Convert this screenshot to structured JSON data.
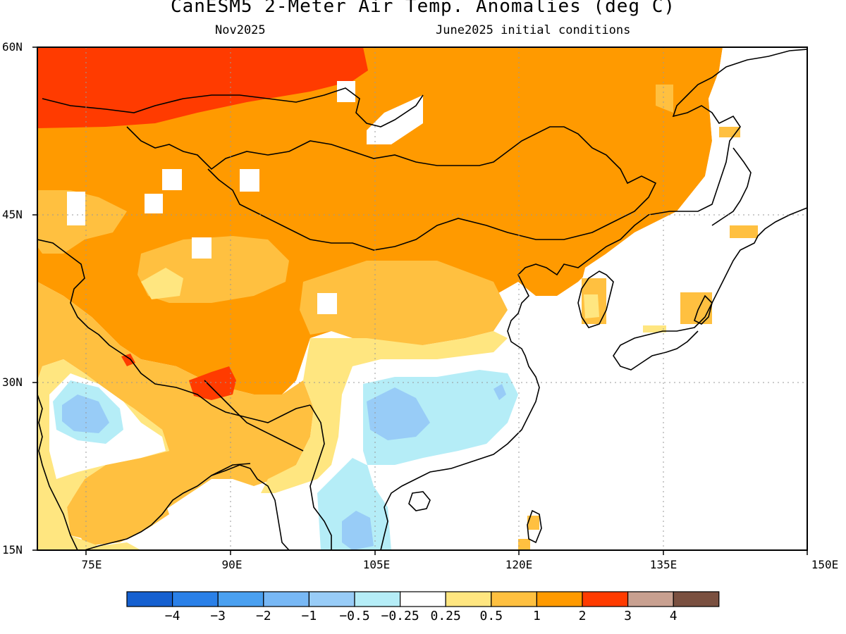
{
  "title": "CanESM5 2-Meter Air Temp. Anomalies (deg C)",
  "subtitle_left": "Nov2025",
  "subtitle_right": "June2025 initial conditions",
  "lat_axis": {
    "ticks": [
      {
        "label": "60N",
        "value": 60
      },
      {
        "label": "45N",
        "value": 45
      },
      {
        "label": "30N",
        "value": 30
      },
      {
        "label": "15N",
        "value": 15
      }
    ],
    "range": [
      15,
      60
    ]
  },
  "lon_axis": {
    "ticks": [
      {
        "label": "75E",
        "value": 75
      },
      {
        "label": "90E",
        "value": 90
      },
      {
        "label": "105E",
        "value": 105
      },
      {
        "label": "120E",
        "value": 120
      },
      {
        "label": "135E",
        "value": 135
      },
      {
        "label": "150E",
        "value": 150
      }
    ],
    "range": [
      70,
      150
    ]
  },
  "grid": "dotted",
  "colorbar": {
    "colors": [
      "#1560d0",
      "#2a80e8",
      "#4aa0f0",
      "#78b8f5",
      "#98ccf7",
      "#b5edf7",
      "#ffffff",
      "#ffe680",
      "#ffc040",
      "#ff9a00",
      "#ff3b00",
      "#c8a090",
      "#7a5040"
    ],
    "labels": [
      "−4",
      "−3",
      "−2",
      "−1",
      "−0.5",
      "−0.25",
      "0.25",
      "0.5",
      "1",
      "2",
      "3",
      "4"
    ]
  },
  "anomaly_colors": {
    "above_2_to_3": "#ff3b00",
    "above_1_to_2": "#ff9a00",
    "above_0_5_to_1": "#ffc040",
    "above_0_25_to_0_5": "#ffe680",
    "near_zero": "#ffffff",
    "below_0_25_to_0_5": "#b5edf7",
    "below_0_5_to_1": "#98ccf7"
  }
}
